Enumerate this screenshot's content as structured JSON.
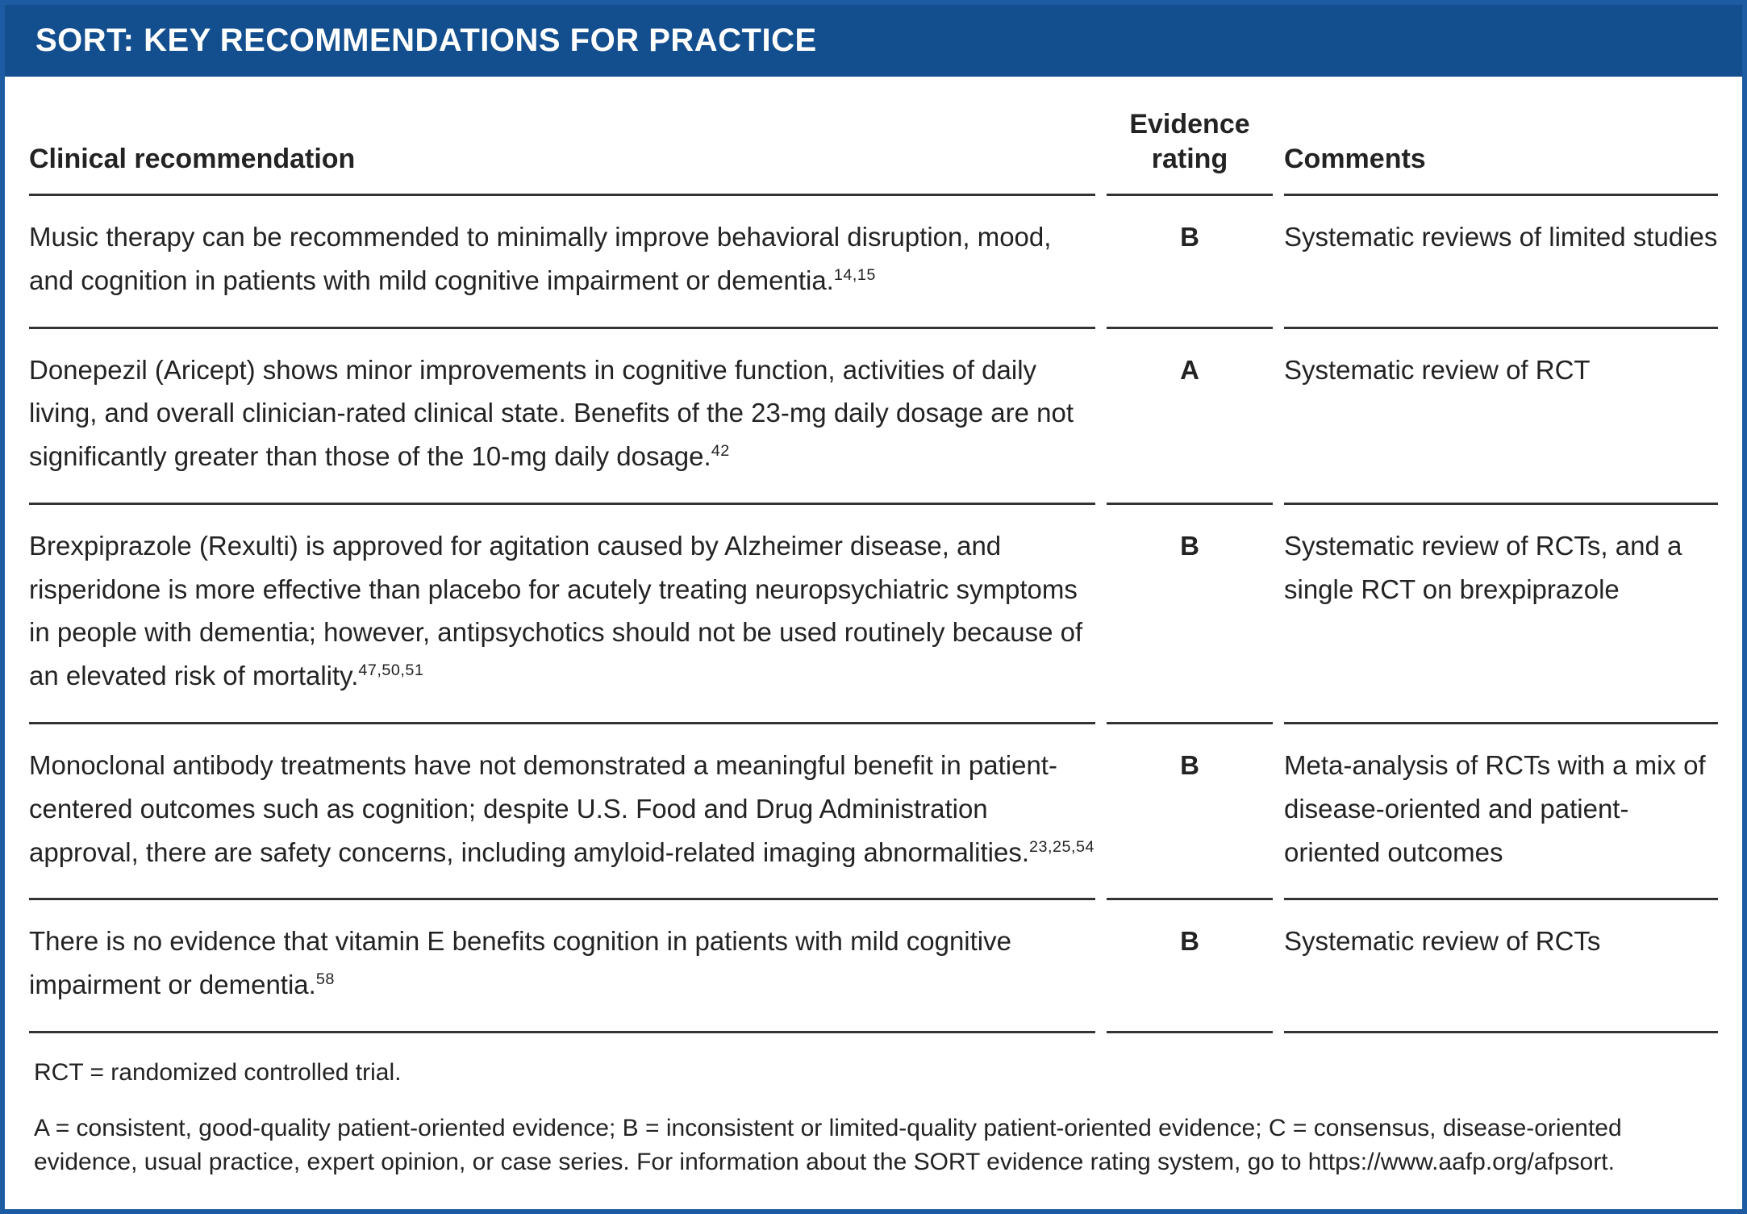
{
  "title": "SORT: KEY RECOMMENDATIONS FOR PRACTICE",
  "columns": {
    "recommendation": "Clinical recommendation",
    "rating": "Evidence rating",
    "comments": "Comments"
  },
  "rows": [
    {
      "recommendation": "Music therapy can be recommended to minimally improve behavioral disruption, mood, and cognition in patients with mild cognitive impairment or dementia.",
      "ref": "14,15",
      "rating": "B",
      "comment": "Systematic reviews of limited studies"
    },
    {
      "recommendation": "Donepezil (Aricept) shows minor improvements in cognitive function, activities of daily living, and overall clinician-rated clinical state. Benefits of the 23-mg daily dosage are not significantly greater than those of the 10-mg daily dosage.",
      "ref": "42",
      "rating": "A",
      "comment": "Systematic review of RCT"
    },
    {
      "recommendation": "Brexpiprazole (Rexulti) is approved for agitation caused by Alzheimer disease, and risperidone is more effective than placebo for acutely treating neuropsychiatric symptoms in people with dementia; however, antipsychotics should not be used routinely because of an elevated risk of mortality.",
      "ref": "47,50,51",
      "rating": "B",
      "comment": "Systematic review of RCTs, and a single RCT on brexpiprazole"
    },
    {
      "recommendation": "Monoclonal antibody treatments have not demonstrated a meaningful benefit in patient-centered outcomes such as cognition; despite U.S. Food and Drug Administration approval, there are safety concerns, including amyloid-related imaging abnormalities.",
      "ref": "23,25,54",
      "rating": "B",
      "comment": "Meta-analysis of RCTs with a mix of disease-oriented and patient-oriented outcomes"
    },
    {
      "recommendation": "There is no evidence that vitamin E benefits cognition in patients with mild cognitive impairment or dementia.",
      "ref": "58",
      "rating": "B",
      "comment": "Systematic review of RCTs"
    }
  ],
  "footnotes": {
    "abbreviation": "RCT = randomized controlled trial.",
    "sort_definitions": "A = consistent, good-quality patient-oriented evidence; B = inconsistent or limited-quality patient-oriented evidence; C = consensus, disease-oriented evidence, usual practice, expert opinion, or case series. For information about the SORT evidence rating system, go to https://www.aafp.org/afpsort."
  },
  "colors": {
    "header_bar_blue": "#134f8e",
    "outer_border_blue": "#1d5ca3",
    "rule_gray": "#333333",
    "text": "#232323",
    "title_text": "#ffffff"
  }
}
